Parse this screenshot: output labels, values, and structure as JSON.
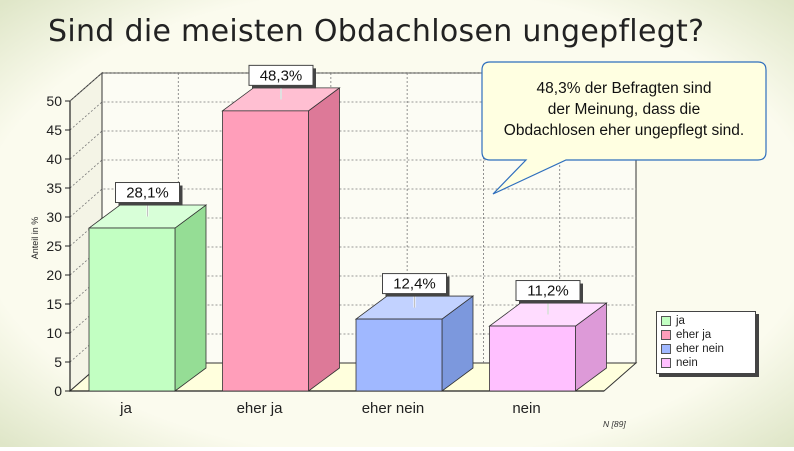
{
  "title": "Sind die meisten Obdachlosen ungepflegt?",
  "colors": {
    "background": "#ffffff",
    "panel_bg": "#f8f8e6",
    "floor": "#ffffdd",
    "bar_front": [
      "#c2ffc2",
      "#ff9eba",
      "#a0b8ff",
      "#ffc0ff"
    ],
    "bar_side": [
      "#95dd95",
      "#dd7998",
      "#7c98dd",
      "#dd9ad8"
    ],
    "bar_top": [
      "#d8ffd8",
      "#ffbfd2",
      "#c2d2ff",
      "#ffdcff"
    ],
    "callout_bg": "#ffffe1",
    "callout_border": "#2f6fbd"
  },
  "callout": {
    "lines": [
      "48,3% der Befragten sind",
      "der Meinung, dass die",
      "Obdachlosen eher ungepflegt sind."
    ]
  },
  "footnote": "N [89]",
  "chart_data": {
    "type": "bar",
    "title": "Sind die meisten Obdachlosen ungepflegt?",
    "categories": [
      "ja",
      "eher ja",
      "eher nein",
      "nein"
    ],
    "values": [
      28.1,
      48.3,
      12.4,
      11.2
    ],
    "data_labels": [
      "28,1%",
      "48,3%",
      "12,4%",
      "11,2%"
    ],
    "xlabel": "",
    "ylabel": "Anteil in %",
    "ylim": [
      0,
      50
    ],
    "yticks": [
      0,
      5,
      10,
      15,
      20,
      25,
      30,
      35,
      40,
      45,
      50
    ],
    "grid": true,
    "legend": {
      "placement": "bottom-right",
      "entries": [
        "ja",
        "eher ja",
        "eher nein",
        "nein"
      ]
    },
    "annotation": "48,3% der Befragten sind der Meinung, dass die Obdachlosen eher ungepflegt sind.",
    "sample_size": "N [89]"
  }
}
